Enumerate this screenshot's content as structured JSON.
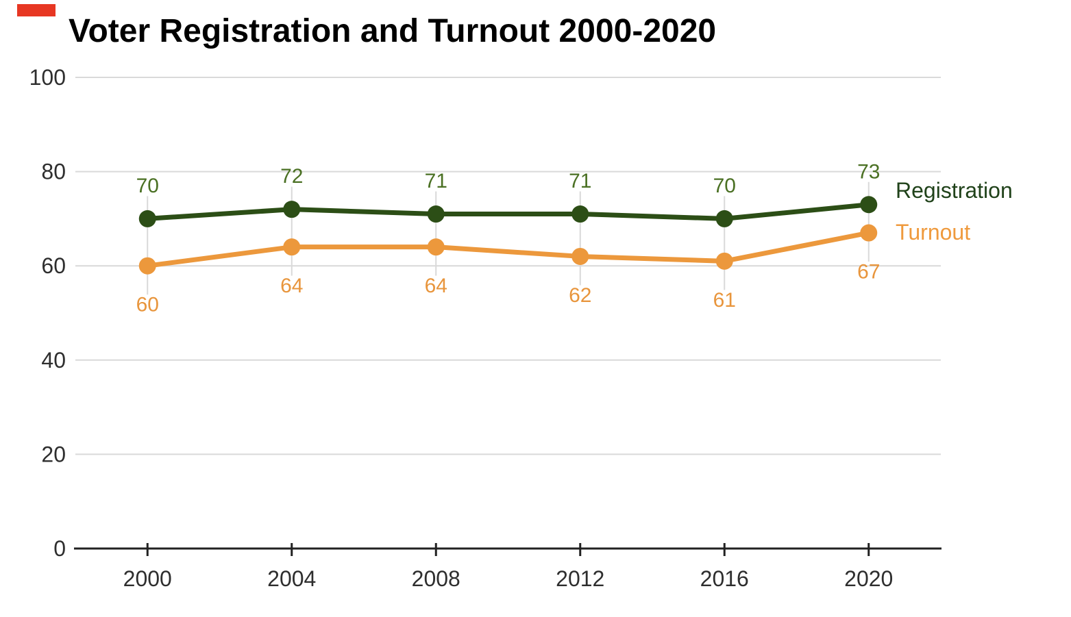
{
  "artifact": {
    "red_marker_color": "#e73723"
  },
  "chart_data": {
    "type": "line",
    "title": "Voter Registration and Turnout 2000-2020",
    "categories": [
      "2000",
      "2004",
      "2008",
      "2012",
      "2016",
      "2020"
    ],
    "series": [
      {
        "name": "Registration",
        "values": [
          70,
          72,
          71,
          71,
          70,
          73
        ],
        "line_color": "#2c4e16",
        "label_color": "#4a7023",
        "legend_color": "#20421a"
      },
      {
        "name": "Turnout",
        "values": [
          60,
          64,
          64,
          62,
          61,
          67
        ],
        "line_color": "#ec983c",
        "label_color": "#e8953c",
        "legend_color": "#ef9a3d"
      }
    ],
    "y_ticks": [
      0,
      20,
      40,
      60,
      80,
      100
    ],
    "ylim": [
      0,
      100
    ],
    "grid": true,
    "legend_position": "right",
    "colors": {
      "grid": "#d9d9d9",
      "leader": "#d9d9d9",
      "axis": "#212121",
      "tick_label": "#2e2e2e",
      "title": "#000000"
    }
  }
}
